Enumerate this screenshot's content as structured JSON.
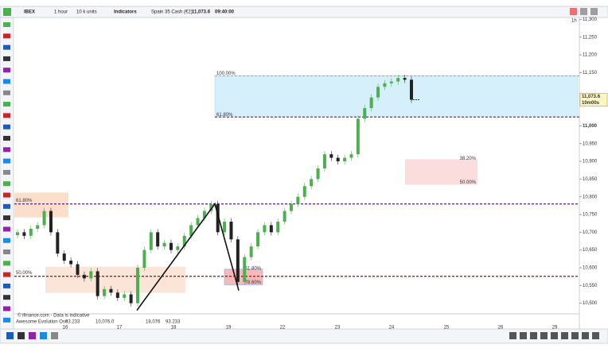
{
  "toolbar": {
    "instrument": "IBEX",
    "interval_menu": "1 hour",
    "size_menu": "10 k units",
    "indicators": "Indicators",
    "market": "Spain 35 Cash (€2)",
    "price": "11,073.6",
    "time": "09:40:00"
  },
  "chart_data": {
    "type": "candlestick",
    "timeframe": "1h",
    "prices": [
      10700,
      10690,
      10710,
      10720,
      10760,
      10700,
      10640,
      10620,
      10610,
      10580,
      10570,
      10590,
      10520,
      10540,
      10530,
      10515,
      10525,
      10500,
      10600,
      10650,
      10700,
      10660,
      10670,
      10650,
      10660,
      10690,
      10720,
      10740,
      10760,
      10780,
      10700,
      10730,
      10680,
      10560,
      10630,
      10660,
      10700,
      10720,
      10700,
      10730,
      10760,
      10780,
      10800,
      10830,
      10850,
      10880,
      10920,
      10910,
      10900,
      10910,
      10920,
      11020,
      11050,
      11080,
      11110,
      11120,
      11125,
      11135,
      11130,
      11073.6
    ],
    "up_color": "#4caf50",
    "down_color": "#222222",
    "ylim": [
      10470,
      11310
    ],
    "yticks": [
      {
        "value": 11300,
        "label": "11,300"
      },
      {
        "value": 11250,
        "label": "11,250"
      },
      {
        "value": 11200,
        "label": "11,200"
      },
      {
        "value": 11150,
        "label": "11,150"
      },
      {
        "value": 11000,
        "label": "11,000"
      },
      {
        "value": 10950,
        "label": "10,950"
      },
      {
        "value": 10900,
        "label": "10,900"
      },
      {
        "value": 10850,
        "label": "10,850"
      },
      {
        "value": 10800,
        "label": "10,800"
      },
      {
        "value": 10750,
        "label": "10,750"
      },
      {
        "value": 10700,
        "label": "10,700"
      },
      {
        "value": 10650,
        "label": "10,650"
      },
      {
        "value": 10600,
        "label": "10,600"
      },
      {
        "value": 10550,
        "label": "10,550"
      },
      {
        "value": 10500,
        "label": "10,500"
      }
    ],
    "x_labels": [
      "16",
      "17",
      "18",
      "19",
      "22",
      "23",
      "24",
      "25",
      "26",
      "29"
    ],
    "price_tag": "11,073.6",
    "countdown": "10m00s",
    "levels": [
      {
        "value": 11141,
        "color": "#3fb8d6",
        "label": "100.00%"
      },
      {
        "value": 11025,
        "color": "#7b2d8e",
        "label": "61.80%"
      },
      {
        "value": 10780,
        "color": "#5a1f8a"
      },
      {
        "value": 10576,
        "color": "#a02020"
      }
    ],
    "zones": [
      {
        "top": 10812,
        "bottom": 10742,
        "color": "#f8c9a8",
        "label": "61.80%"
      },
      {
        "top": 10603,
        "bottom": 10529,
        "color": "#f8d3bf",
        "label": "50.00%"
      },
      {
        "top": 10906,
        "bottom": 10834,
        "color": "#f8c6c6",
        "label": "38.20%",
        "label2": "50.00%"
      },
      {
        "top": 10596,
        "bottom": 10552,
        "color": "#f08080",
        "label": "61.80%",
        "label2": "78.60%"
      }
    ],
    "zigzag": [
      10480,
      10780,
      10536
    ],
    "oscillator": {
      "name": "Awesome Evolution Osc",
      "values": [
        "93.233",
        "10,076.0",
        "18,076",
        "93.233"
      ]
    },
    "credit": "© ifinance.com - Data is indicative"
  }
}
